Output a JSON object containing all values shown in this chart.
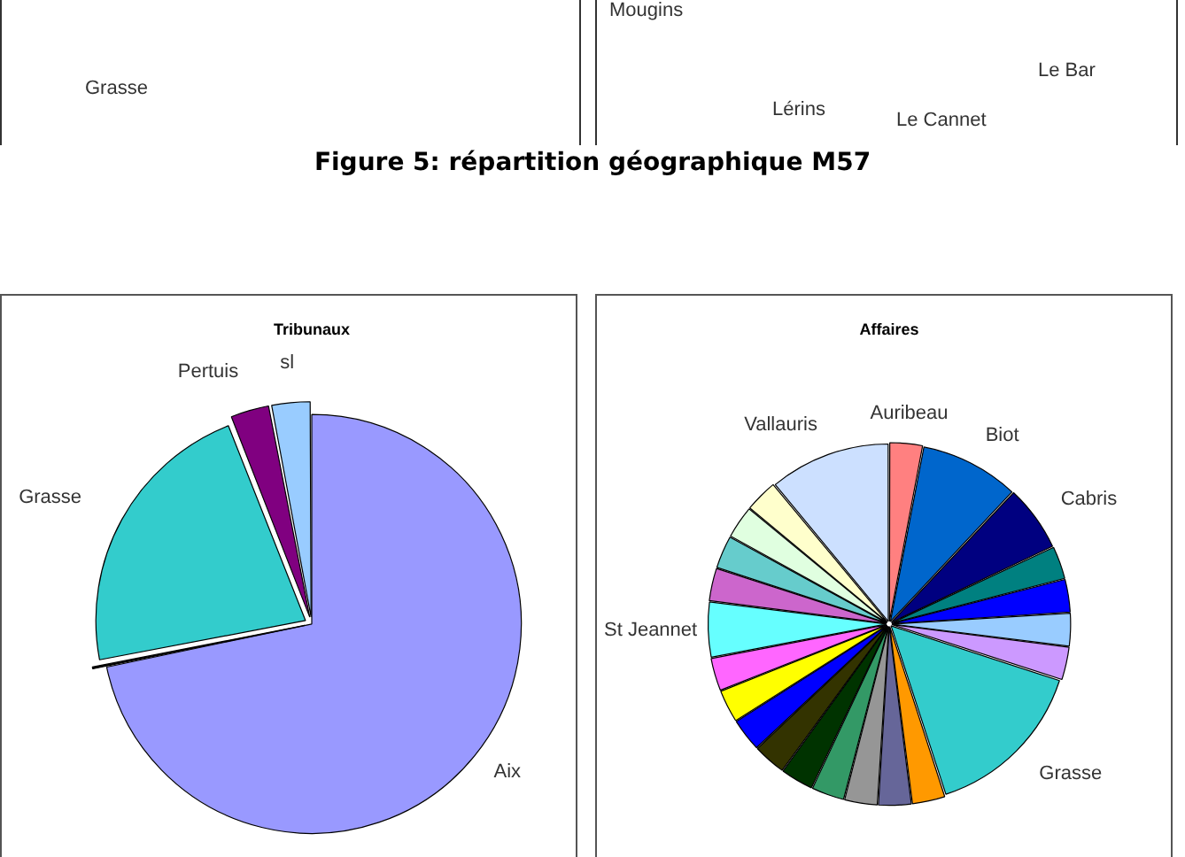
{
  "chart_data": [
    {
      "type": "other",
      "annotations": [
        "Grasse",
        "Figure 5: répartition géographique M57"
      ]
    },
    {
      "type": "other",
      "annotations": [
        "Mougins",
        "Lérins",
        "Le Cannet",
        "Le Bar"
      ]
    },
    {
      "type": "pie",
      "title": "Tribunaux",
      "categories": [
        "Aix",
        null,
        "Grasse",
        "Pertuis",
        "sl"
      ],
      "values": [
        71.7,
        0.3,
        22,
        3,
        3
      ],
      "colors": [
        "#9999ff",
        "#000000",
        "#33cccc",
        "#800080",
        "#99ccff"
      ],
      "legend": false
    },
    {
      "type": "pie",
      "title": "Affaires",
      "categories": [
        "Auribeau",
        "Biot",
        "Cabris",
        null,
        null,
        null,
        null,
        "Grasse",
        null,
        null,
        null,
        null,
        null,
        null,
        null,
        null,
        null,
        "St Jeannet",
        null,
        null,
        null,
        null,
        "Vallauris"
      ],
      "values": [
        3,
        9,
        6,
        3,
        3,
        3,
        3,
        15,
        3,
        3,
        3,
        3,
        3,
        3,
        3,
        3,
        3,
        5,
        3,
        3,
        3,
        3,
        11
      ],
      "colors": [
        "#ff8080",
        "#0066cc",
        "#000080",
        "#008080",
        "#0000ff",
        "#99ccff",
        "#cc99ff",
        "#33cccc",
        "#ff9900",
        "#666699",
        "#969696",
        "#339966",
        "#003300",
        "#333300",
        "#0000ff",
        "#ffff00",
        "#ff66ff",
        "#66ffff",
        "#cc66cc",
        "#66cccc",
        "#e0ffe0",
        "#ffffcc",
        "#cce0ff"
      ],
      "legend": false
    }
  ]
}
